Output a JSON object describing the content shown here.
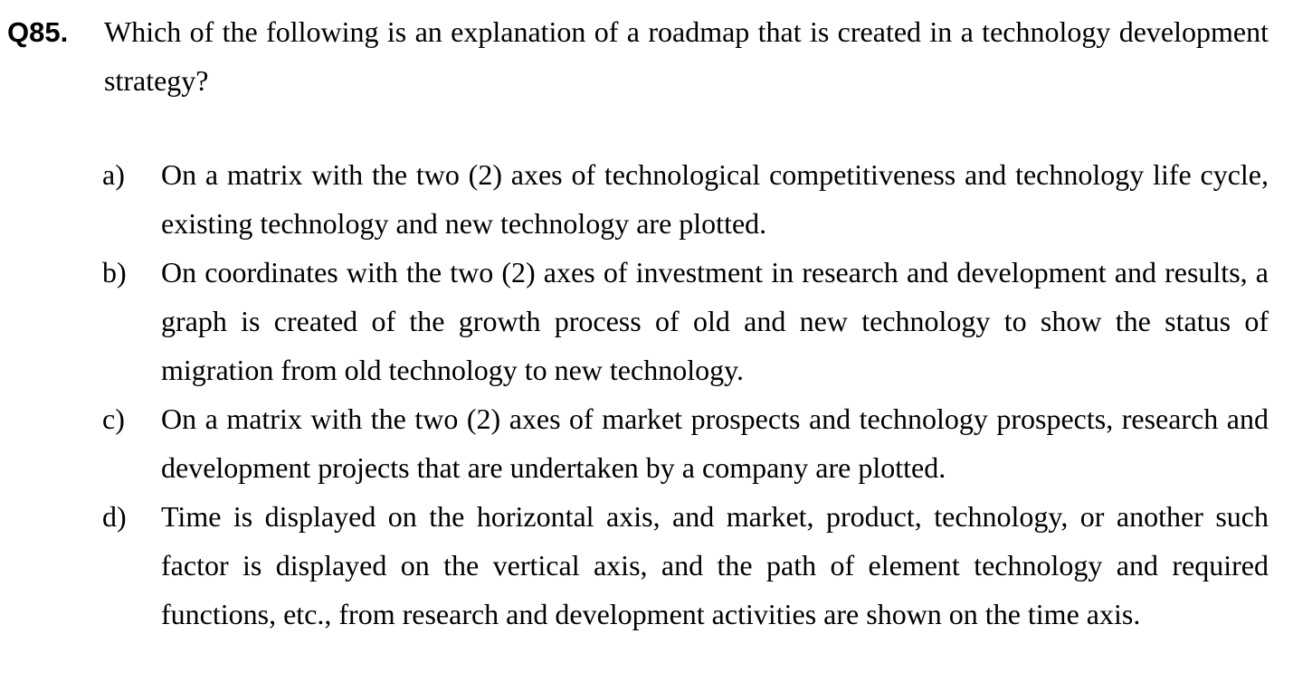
{
  "question": {
    "number": "Q85.",
    "text": "Which of the following is an explanation of a roadmap that is created in a technology development strategy?"
  },
  "options": [
    {
      "letter": "a)",
      "text": "On a matrix with the two (2) axes of technological competitiveness and technology life cycle, existing technology and new technology are plotted."
    },
    {
      "letter": "b)",
      "text": "On coordinates with the two (2) axes of investment in research and development and results, a graph is created of the growth process of old and new technology to show the status of migration from old technology to new technology."
    },
    {
      "letter": "c)",
      "text": "On a matrix with the two (2) axes of market prospects and technology prospects, research and development projects that are undertaken by a company are plotted."
    },
    {
      "letter": "d)",
      "text": "Time is displayed on the horizontal axis, and market, product, technology, or another such factor is displayed on the vertical axis, and the path of element technology and required functions, etc., from research and development activities are shown on the time axis."
    }
  ]
}
